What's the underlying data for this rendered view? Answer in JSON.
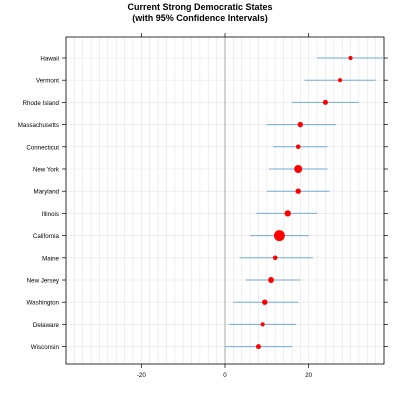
{
  "chart_data": {
    "type": "scatter",
    "title": "Current Strong Democratic States",
    "subtitle": "(with 95% Confidence Intervals)",
    "xlabel": "",
    "ylabel": "",
    "xlim": [
      -38,
      38
    ],
    "x_ticks": [
      -20,
      0,
      20
    ],
    "grid": true,
    "legend": "none",
    "colors": {
      "point": "#ff0000",
      "interval": "#6fa8dc",
      "grid": "#e4e4e4",
      "zero_line": "#999999",
      "frame": "#000000"
    },
    "categories": [
      "Hawaii",
      "Vermont",
      "Rhode Island",
      "Massachusetts",
      "Connecticut",
      "New York",
      "Maryland",
      "Illinois",
      "California",
      "Maine",
      "New Jersey",
      "Washington",
      "Delaware",
      "Wisconsin"
    ],
    "series": [
      {
        "estimate": [
          30,
          27.5,
          24,
          18,
          17.5,
          17.5,
          17.5,
          15,
          13,
          12,
          11,
          9.5,
          9,
          8
        ],
        "ci_low": [
          22,
          19,
          16,
          10,
          11.5,
          10.5,
          10,
          7.5,
          6,
          3.5,
          5,
          2,
          1,
          0
        ],
        "ci_high": [
          38,
          36,
          32,
          26.5,
          24.5,
          24.5,
          25,
          22,
          20,
          21,
          18,
          17.5,
          17,
          16
        ],
        "weight": [
          1,
          1,
          1.2,
          1.3,
          1.1,
          1.9,
          1.3,
          1.5,
          2.6,
          1.1,
          1.4,
          1.3,
          1.0,
          1.2
        ]
      }
    ]
  }
}
